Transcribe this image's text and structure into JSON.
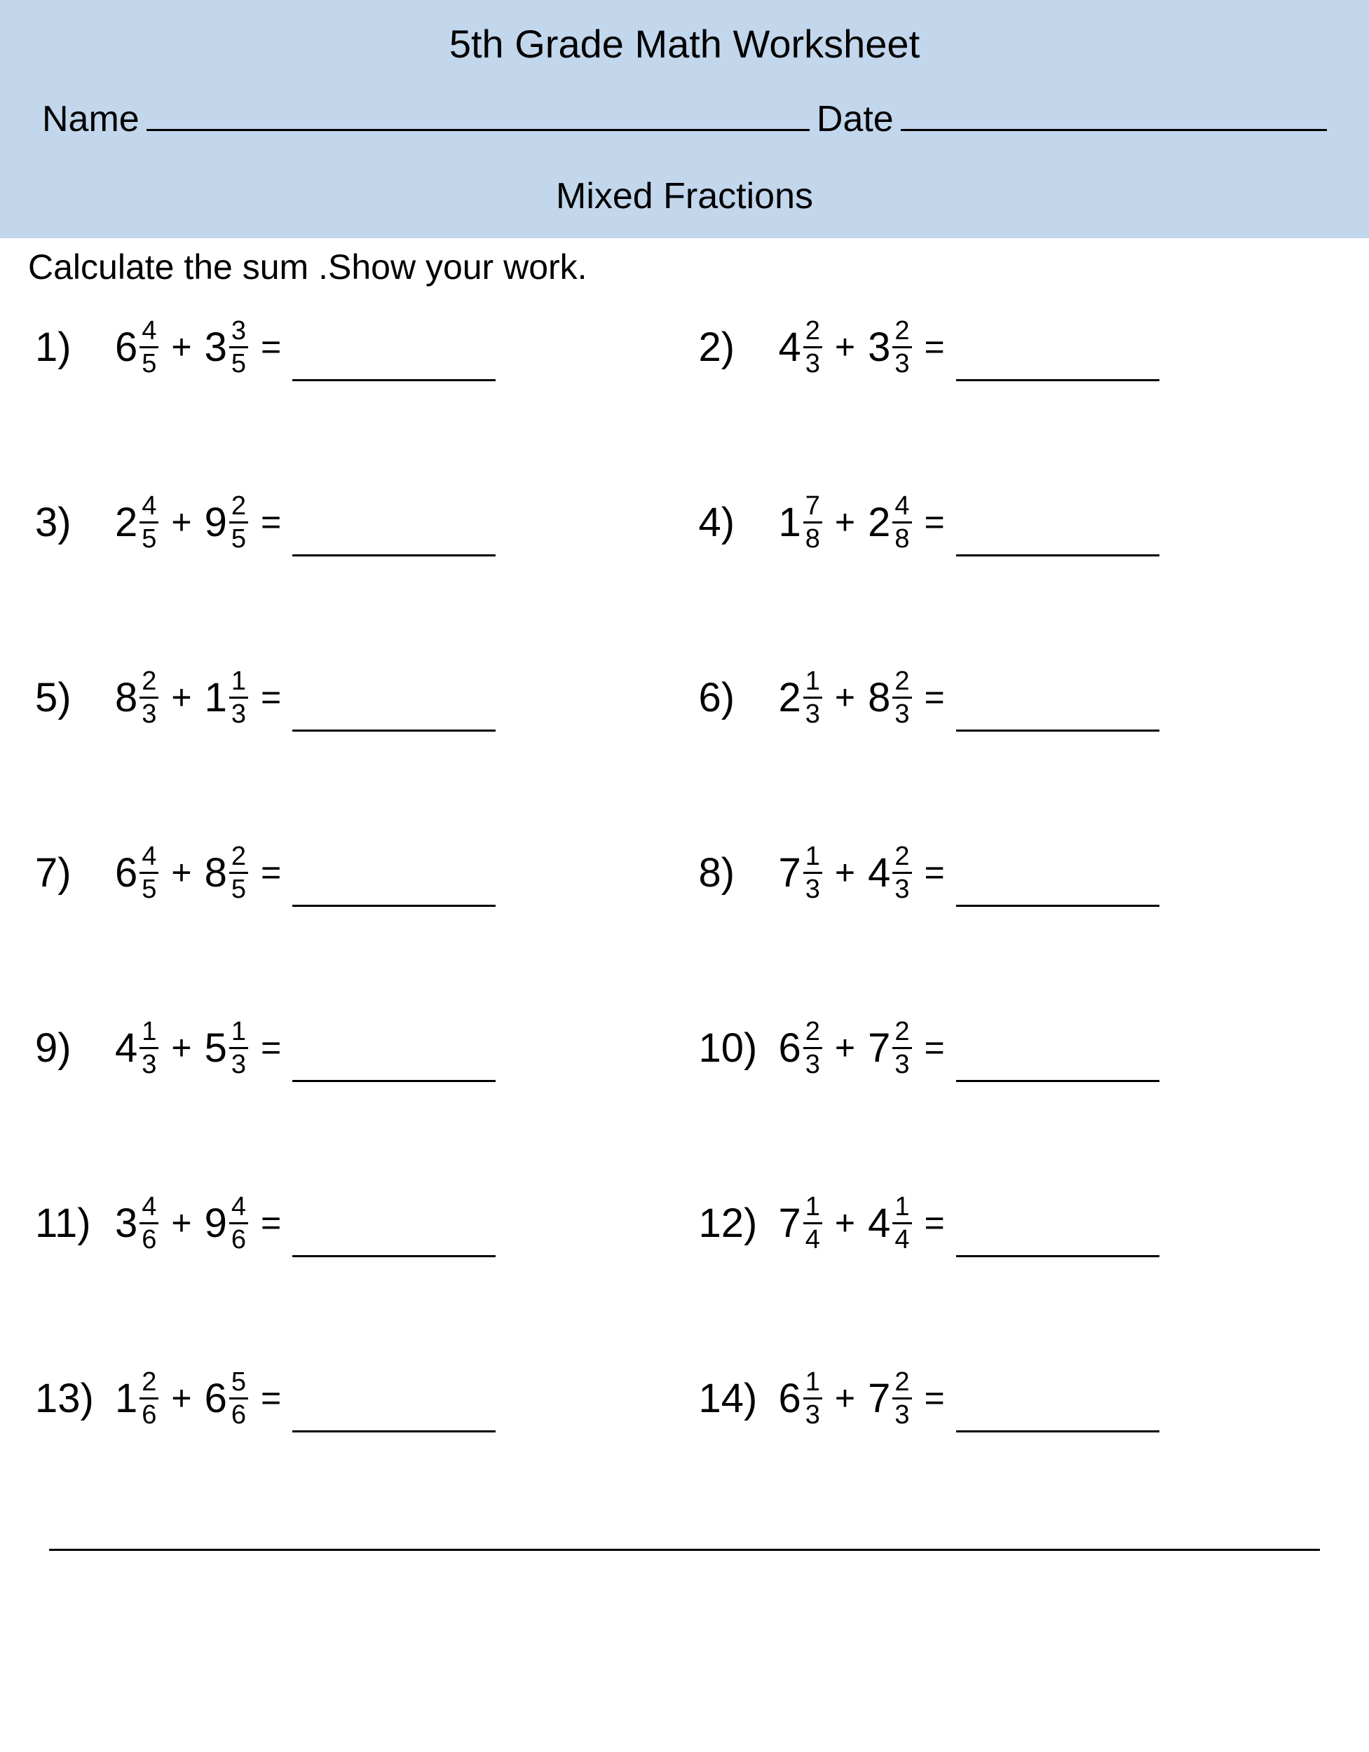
{
  "header": {
    "title": "5th Grade Math Worksheet",
    "name_label": "Name",
    "date_label": "Date",
    "subtitle": "Mixed Fractions"
  },
  "instruction": "Calculate the sum .Show your work.",
  "operator": "+",
  "equals": "=",
  "problems": [
    {
      "n": "1)",
      "a": {
        "w": "6",
        "num": "4",
        "den": "5"
      },
      "b": {
        "w": "3",
        "num": "3",
        "den": "5"
      }
    },
    {
      "n": "2)",
      "a": {
        "w": "4",
        "num": "2",
        "den": "3"
      },
      "b": {
        "w": "3",
        "num": "2",
        "den": "3"
      }
    },
    {
      "n": "3)",
      "a": {
        "w": "2",
        "num": "4",
        "den": "5"
      },
      "b": {
        "w": "9",
        "num": "2",
        "den": "5"
      }
    },
    {
      "n": "4)",
      "a": {
        "w": "1",
        "num": "7",
        "den": "8"
      },
      "b": {
        "w": "2",
        "num": "4",
        "den": "8"
      }
    },
    {
      "n": "5)",
      "a": {
        "w": "8",
        "num": "2",
        "den": "3"
      },
      "b": {
        "w": "1",
        "num": "1",
        "den": "3"
      }
    },
    {
      "n": "6)",
      "a": {
        "w": "2",
        "num": "1",
        "den": "3"
      },
      "b": {
        "w": "8",
        "num": "2",
        "den": "3"
      }
    },
    {
      "n": "7)",
      "a": {
        "w": "6",
        "num": "4",
        "den": "5"
      },
      "b": {
        "w": "8",
        "num": "2",
        "den": "5"
      }
    },
    {
      "n": "8)",
      "a": {
        "w": "7",
        "num": "1",
        "den": "3"
      },
      "b": {
        "w": "4",
        "num": "2",
        "den": "3"
      }
    },
    {
      "n": "9)",
      "a": {
        "w": "4",
        "num": "1",
        "den": "3"
      },
      "b": {
        "w": "5",
        "num": "1",
        "den": "3"
      }
    },
    {
      "n": "10)",
      "a": {
        "w": "6",
        "num": "2",
        "den": "3"
      },
      "b": {
        "w": "7",
        "num": "2",
        "den": "3"
      }
    },
    {
      "n": "11)",
      "a": {
        "w": "3",
        "num": "4",
        "den": "6"
      },
      "b": {
        "w": "9",
        "num": "4",
        "den": "6"
      }
    },
    {
      "n": "12)",
      "a": {
        "w": "7",
        "num": "1",
        "den": "4"
      },
      "b": {
        "w": "4",
        "num": "1",
        "den": "4"
      }
    },
    {
      "n": "13)",
      "a": {
        "w": "1",
        "num": "2",
        "den": "6"
      },
      "b": {
        "w": "6",
        "num": "5",
        "den": "6"
      }
    },
    {
      "n": "14)",
      "a": {
        "w": "6",
        "num": "1",
        "den": "3"
      },
      "b": {
        "w": "7",
        "num": "2",
        "den": "3"
      }
    }
  ]
}
